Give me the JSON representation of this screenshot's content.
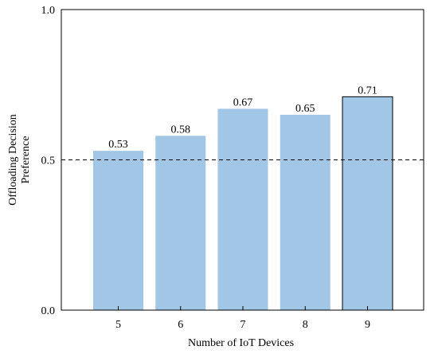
{
  "chart_data": {
    "type": "bar",
    "title": "",
    "xlabel": "Number of IoT Devices",
    "ylabel_lines": [
      "Offloading Decision",
      "Preference"
    ],
    "categories": [
      "5",
      "6",
      "7",
      "8",
      "9"
    ],
    "values": [
      0.53,
      0.58,
      0.67,
      0.65,
      0.71
    ],
    "data_labels": [
      "0.53",
      "0.58",
      "0.67",
      "0.65",
      "0.71"
    ],
    "ylim": [
      0.0,
      1.0
    ],
    "yticks": [
      0.0,
      0.5,
      1.0
    ],
    "ytick_labels": [
      "0.0",
      "0.5",
      "1.0"
    ],
    "reference_line": 0.5,
    "reference_style": "dashed",
    "grid": false,
    "legend": "none",
    "bar_color": "#a1c6e6",
    "highlighted_bar_index": 4,
    "highlight_edge_color": "#000000"
  }
}
